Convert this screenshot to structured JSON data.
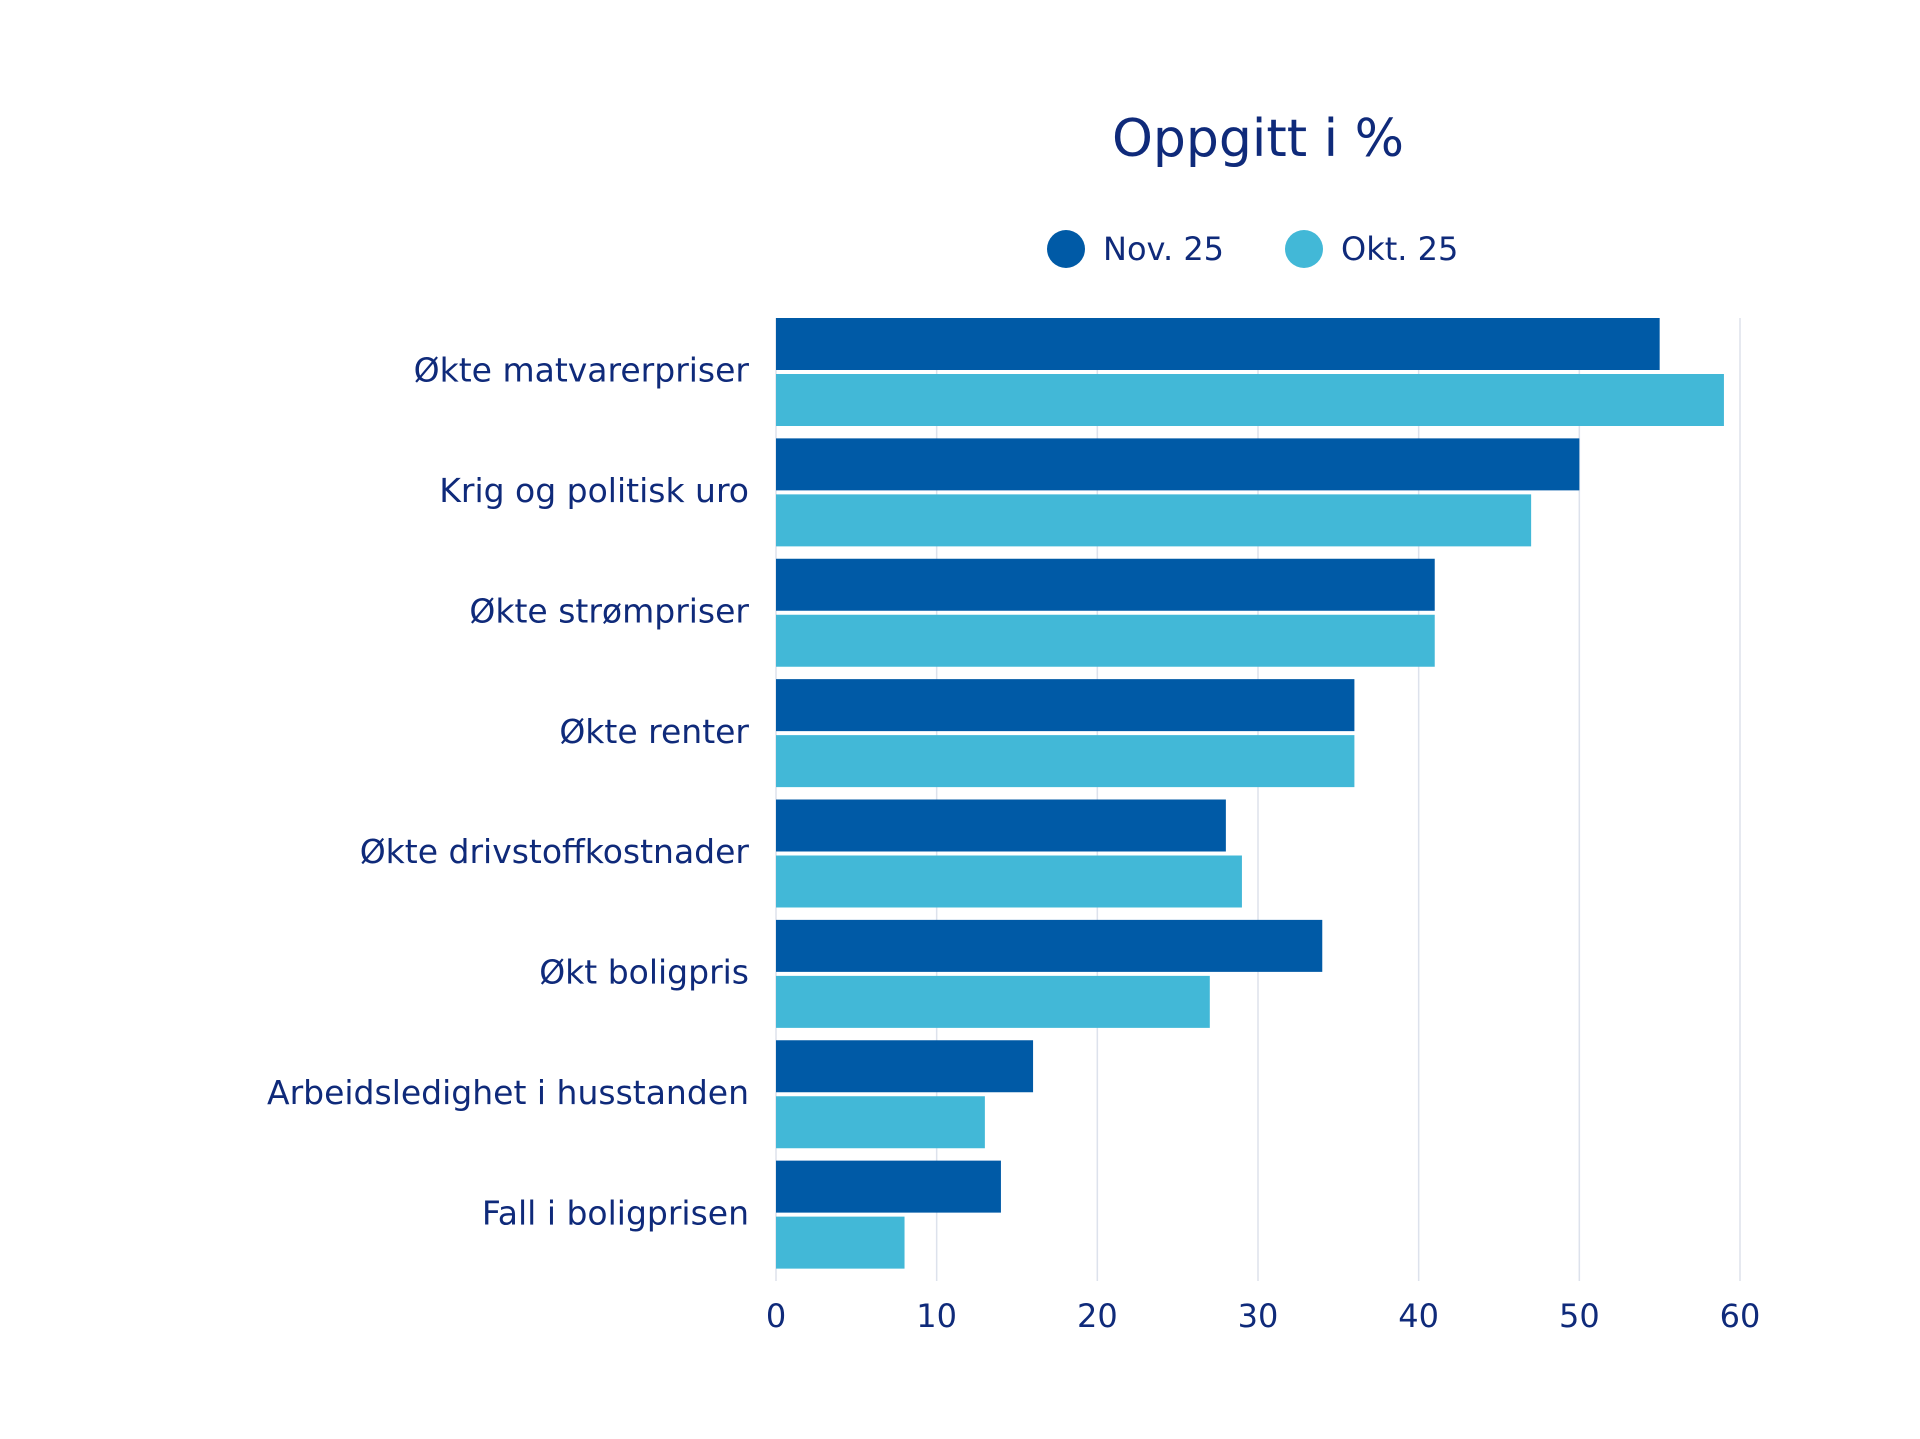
{
  "chart_data": {
    "type": "hbar",
    "title": "Oppgitt i %",
    "categories": [
      "Økte matvarerpriser",
      "Krig og politisk uro",
      "Økte strømpriser",
      "Økte renter",
      "Økte drivstoffkostnader",
      "Økt boligpris",
      "Arbeidsledighet i husstanden",
      "Fall i boligprisen"
    ],
    "series": [
      {
        "name": "Nov. 25",
        "color": "#005aa6",
        "values": [
          55,
          50,
          41,
          36,
          28,
          34,
          16,
          14
        ]
      },
      {
        "name": "Okt. 25",
        "color": "#42b8d7",
        "values": [
          59,
          47,
          41,
          36,
          29,
          27,
          13,
          8
        ]
      }
    ],
    "xlim": [
      0,
      60
    ],
    "xticks": [
      0,
      10,
      20,
      30,
      40,
      50,
      60
    ],
    "grid": true
  }
}
